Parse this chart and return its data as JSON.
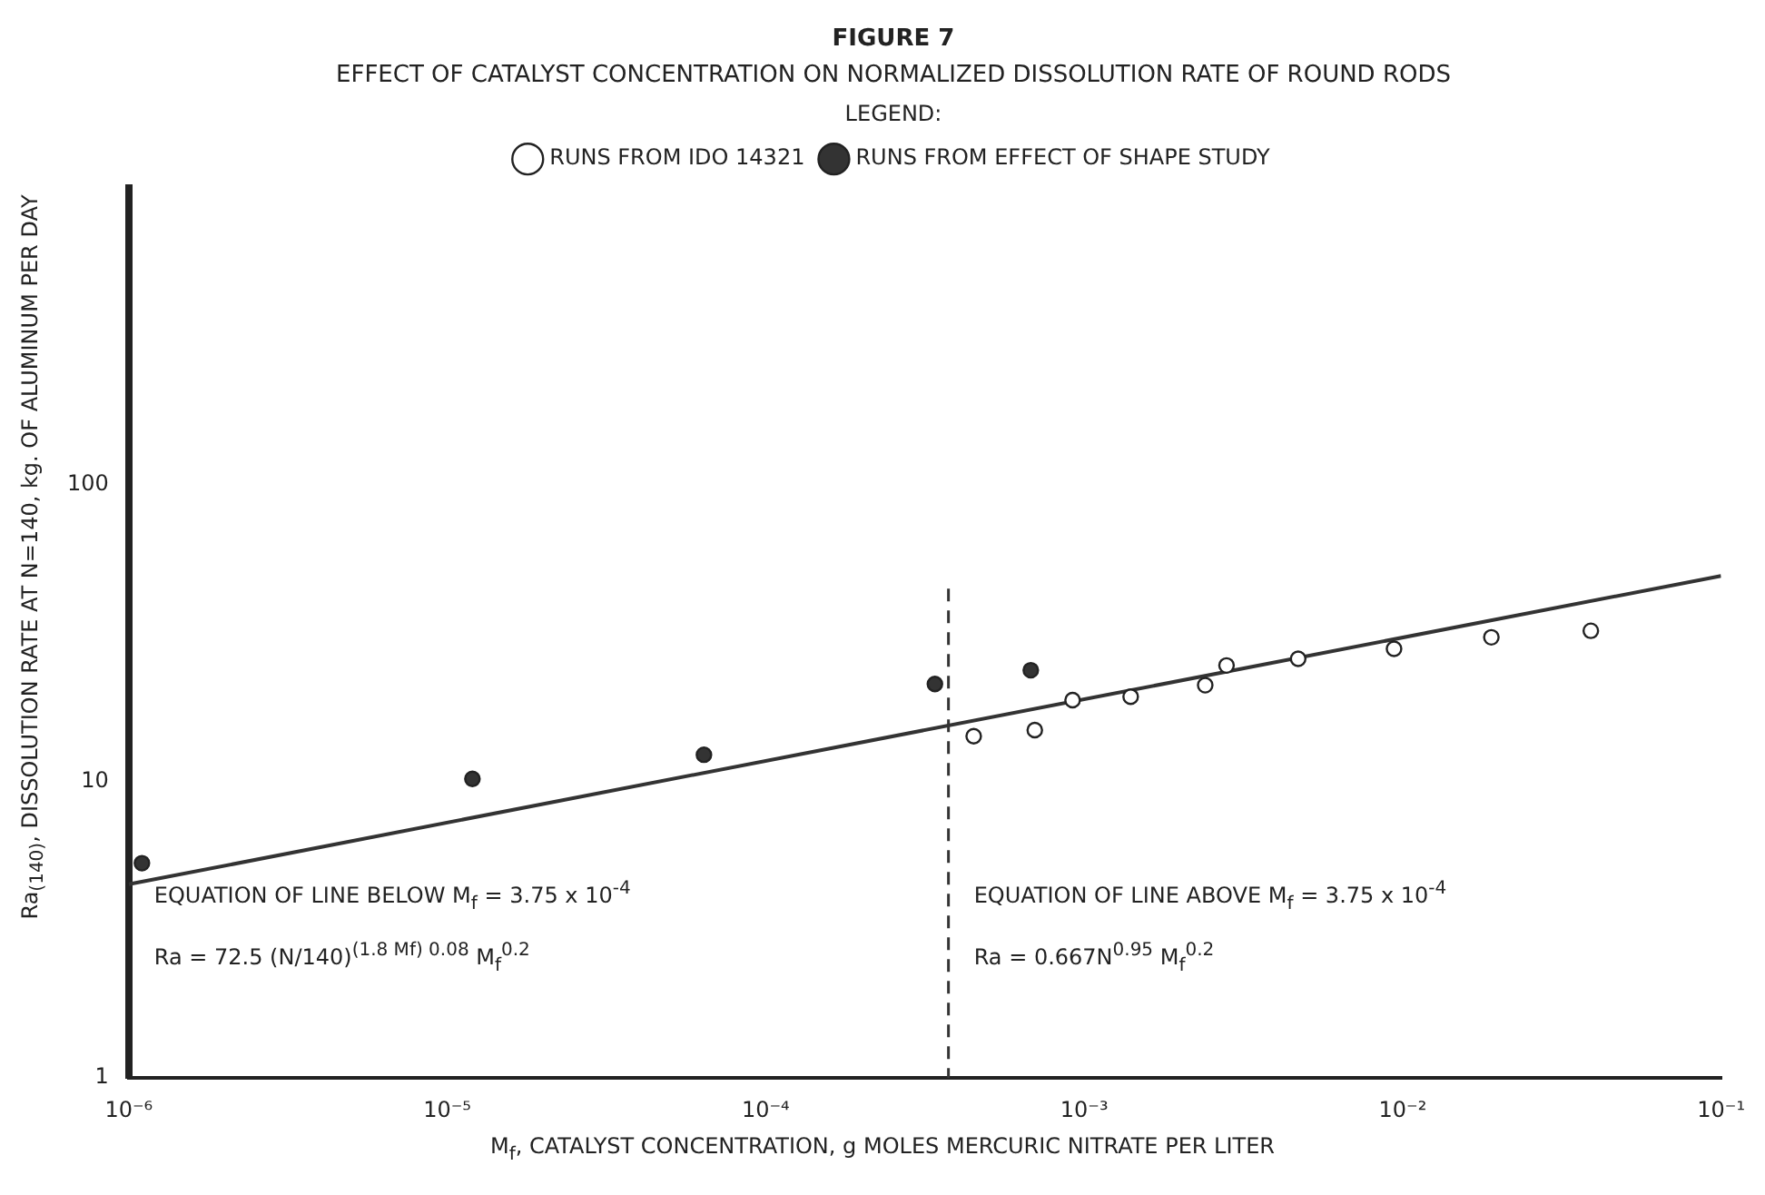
{
  "chart_data": {
    "type": "scatter",
    "title": "FIGURE 7",
    "subtitle": "EFFECT OF CATALYST CONCENTRATION ON NORMALIZED DISSOLUTION RATE OF ROUND RODS",
    "xlabel": "M$_{f}$, CATALYST CONCENTRATION, g MOLES MERCURIC NITRATE PER LITER",
    "ylabel": "Ra$_{(140)}$, DISSOLUTION RATE AT N=140, kg. OF ALUMINUM PER DAY",
    "legend_title": "LEGEND:",
    "series": [
      {
        "name": "RUNS FROM IDO 14321",
        "color": "#ffffff",
        "marker": "circle",
        "x": [
          0.00045,
          0.0007,
          0.00092,
          0.0014,
          0.0024,
          0.0028,
          0.0047,
          0.0094,
          0.019,
          0.039
        ],
        "values": [
          14.2,
          14.9,
          18.8,
          19.3,
          21.1,
          24.6,
          25.9,
          28,
          30.6,
          32.2
        ]
      },
      {
        "name": "RUNS FROM EFFECT OF SHAPE STUDY",
        "color": "#333333",
        "marker": "circle",
        "x": [
          1.1e-06,
          1.2e-05,
          6.4e-05,
          0.00034,
          0.00068
        ],
        "values": [
          5.3,
          10.2,
          12.3,
          21.3,
          23.7
        ]
      },
      {
        "type": "line",
        "color": "#333333",
        "marker": "none",
        "line_style": "solid",
        "x": [
          1e-06,
          0.1
        ],
        "values": [
          4.5,
          49.3
        ]
      }
    ],
    "annotations": [
      "EQUATION OF LINE BELOW M$_{f}$ = 3.75 x 10$^{-4}$",
      "Ra = 72.5 (N/140)$^{(1.8 Mf) 0.08}$ M$_{f}$$^{0.2}$",
      "EQUATION OF LINE ABOVE M$_{f}$ = 3.75 x 10$^{-4}$",
      "Ra = 0.667N$^{0.95}$ M$_{f}$$^{0.2}$"
    ],
    "ref_lines": [
      {
        "axis": "x",
        "value": 0.000375,
        "line_style": "dashed",
        "color": "#333333"
      }
    ],
    "log": "xy",
    "xlim": [
      1e-06,
      0.1
    ],
    "xticks": [
      {
        "value": 1e-06,
        "label": "10⁻⁶"
      },
      {
        "value": 1e-05,
        "label": "10⁻⁵"
      },
      {
        "value": 0.0001,
        "label": "10⁻⁴"
      },
      {
        "value": 0.001,
        "label": "10⁻³"
      },
      {
        "value": 0.01,
        "label": "10⁻²"
      },
      {
        "value": 0.1,
        "label": "10⁻¹"
      }
    ],
    "ylim": [
      1,
      1000
    ],
    "yticks": [
      1,
      10,
      100
    ],
    "grid": false,
    "legend": "top"
  }
}
